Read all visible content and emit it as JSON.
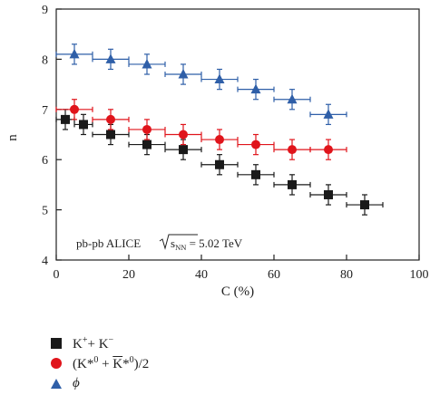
{
  "chart_data": {
    "type": "scatter",
    "xlabel": "C (%)",
    "ylabel": "n",
    "xlim": [
      0,
      100
    ],
    "ylim": [
      4,
      9
    ],
    "x_ticks": [
      "0",
      "20",
      "40",
      "60",
      "80",
      "100"
    ],
    "y_ticks": [
      "4",
      "5",
      "6",
      "7",
      "8",
      "9"
    ],
    "grid": false,
    "legend_position": "bottom-left-outside",
    "annotation": {
      "prefix": "pb-pb ALICE ",
      "sqrt_s": "s",
      "sqrt_sub": "NN",
      "suffix": " = 5.02 TeV"
    },
    "series": [
      {
        "key": "kaon",
        "marker": "square",
        "color": "#1a1a1a",
        "x": [
          2.5,
          7.5,
          15,
          25,
          35,
          45,
          55,
          65,
          75,
          85
        ],
        "xerr": [
          2.5,
          2.5,
          5,
          5,
          5,
          5,
          5,
          5,
          5,
          5
        ],
        "y": [
          6.8,
          6.7,
          6.5,
          6.3,
          6.2,
          5.9,
          5.7,
          5.5,
          5.3,
          5.1
        ],
        "yerr": [
          0.2,
          0.2,
          0.2,
          0.2,
          0.2,
          0.2,
          0.2,
          0.2,
          0.2,
          0.2
        ]
      },
      {
        "key": "kstar",
        "marker": "circle",
        "color": "#e0141b",
        "x": [
          5,
          15,
          25,
          35,
          45,
          55,
          65,
          75
        ],
        "xerr": [
          5,
          5,
          5,
          5,
          5,
          5,
          5,
          5
        ],
        "y": [
          7.0,
          6.8,
          6.6,
          6.5,
          6.4,
          6.3,
          6.2,
          6.2
        ],
        "yerr": [
          0.2,
          0.2,
          0.2,
          0.2,
          0.2,
          0.2,
          0.2,
          0.2
        ]
      },
      {
        "key": "phi",
        "marker": "triangle",
        "color": "#2f5fa8",
        "x": [
          5,
          15,
          25,
          35,
          45,
          55,
          65,
          75
        ],
        "xerr": [
          5,
          5,
          5,
          5,
          5,
          5,
          5,
          5
        ],
        "y": [
          8.1,
          8.0,
          7.9,
          7.7,
          7.6,
          7.4,
          7.2,
          6.9
        ],
        "yerr": [
          0.2,
          0.2,
          0.2,
          0.2,
          0.2,
          0.2,
          0.2,
          0.2
        ]
      }
    ]
  },
  "legend": {
    "kaon": {
      "a": "K",
      "a_sup": "+",
      "mid": "+ K",
      "b_sup": "−"
    },
    "kstar": {
      "open": "(K*",
      "sup1": "0",
      "plus": " + ",
      "kbar": "K",
      "star2": "*",
      "sup2": "0",
      "close": ")/2"
    },
    "phi": {
      "label": "ϕ"
    }
  }
}
